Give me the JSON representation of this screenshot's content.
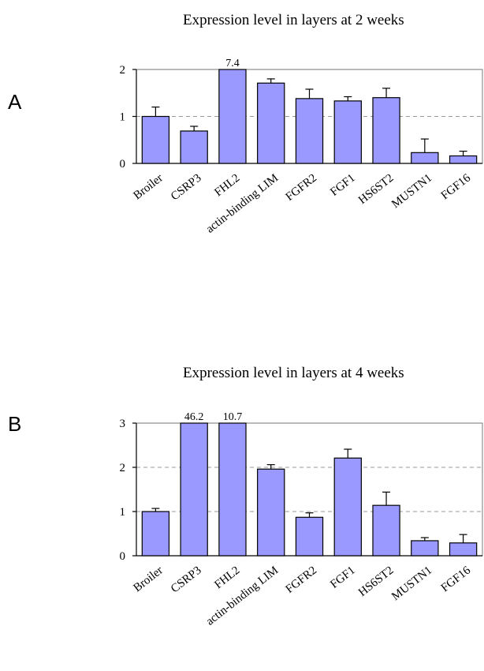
{
  "chart_data": [
    {
      "type": "bar",
      "panel_label": "A",
      "title": "Expression level in layers at 2 weeks",
      "categories": [
        "Broiler",
        "CSRP3",
        "FHL2",
        "actin-binding LIM",
        "FGFR2",
        "FGF1",
        "HS6ST2",
        "MUSTN1",
        "FGF16"
      ],
      "values": [
        1.0,
        0.69,
        7.4,
        1.71,
        1.38,
        1.33,
        1.4,
        0.23,
        0.16
      ],
      "errors": [
        0.2,
        0.1,
        0,
        0.09,
        0.2,
        0.09,
        0.2,
        0.29,
        0.1
      ],
      "data_labels": [
        "",
        "",
        "7.4",
        "",
        "",
        "",
        "",
        "",
        ""
      ],
      "ylim": [
        0,
        2
      ],
      "yticks": [
        "0",
        "1",
        "2"
      ],
      "grid": "dashed horizontal at 1",
      "xlabel": "",
      "ylabel": ""
    },
    {
      "type": "bar",
      "panel_label": "B",
      "title": "Expression level in layers at 4 weeks",
      "categories": [
        "Broiler",
        "CSRP3",
        "FHL2",
        "actin-binding LIM",
        "FGFR2",
        "FGF1",
        "HS6ST2",
        "MUSTN1",
        "FGF16"
      ],
      "values": [
        1.0,
        46.2,
        10.7,
        1.96,
        0.87,
        2.21,
        1.14,
        0.34,
        0.29
      ],
      "errors": [
        0.07,
        0,
        0,
        0.1,
        0.1,
        0.2,
        0.3,
        0.07,
        0.19
      ],
      "data_labels": [
        "",
        "46.2",
        "10.7",
        "",
        "",
        "",
        "",
        "",
        ""
      ],
      "ylim": [
        0,
        3
      ],
      "yticks": [
        "0",
        "1",
        "2",
        "3"
      ],
      "grid": "dashed horizontal at 1 and 2",
      "xlabel": "",
      "ylabel": ""
    }
  ]
}
